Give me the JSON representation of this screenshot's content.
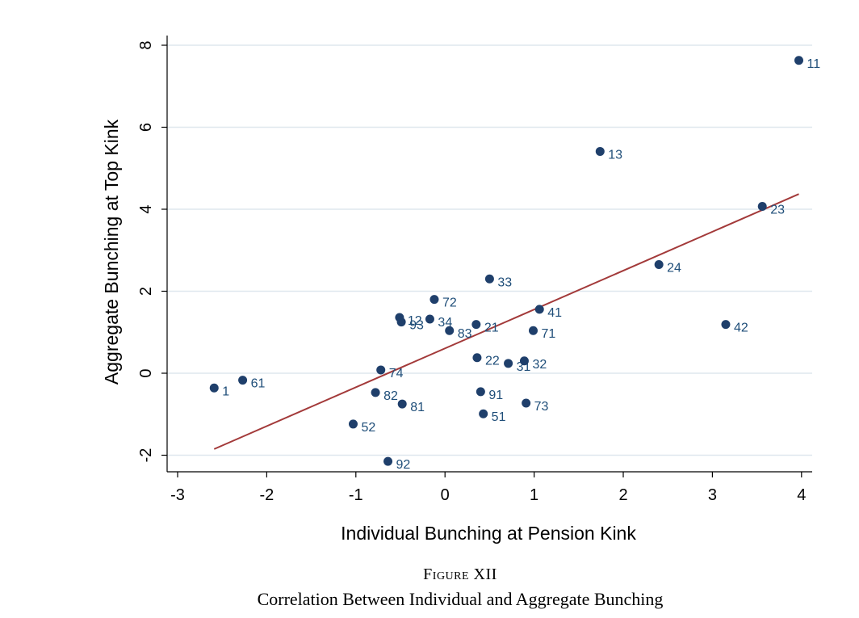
{
  "chart_data": {
    "type": "scatter",
    "xlabel": "Individual Bunching at Pension Kink",
    "ylabel": "Aggregate Bunching at Top Kink",
    "xlim": [
      -3,
      4
    ],
    "ylim": [
      -2,
      8
    ],
    "xticks": [
      -3,
      -2,
      -1,
      0,
      1,
      2,
      3,
      4
    ],
    "yticks": [
      -2,
      0,
      2,
      4,
      6,
      8
    ],
    "grid": "horizontal",
    "colors": {
      "points": "#1f3f6b",
      "labels": "#1f4e79",
      "fit_line": "#a33a3a",
      "grid": "#dfe7ee"
    },
    "points": [
      {
        "label": "11",
        "x": 3.97,
        "y": 7.63
      },
      {
        "label": "13",
        "x": 1.74,
        "y": 5.41
      },
      {
        "label": "23",
        "x": 3.56,
        "y": 4.07
      },
      {
        "label": "24",
        "x": 2.4,
        "y": 2.65
      },
      {
        "label": "33",
        "x": 0.5,
        "y": 2.3
      },
      {
        "label": "72",
        "x": -0.12,
        "y": 1.8
      },
      {
        "label": "41",
        "x": 1.06,
        "y": 1.56
      },
      {
        "label": "12",
        "x": -0.51,
        "y": 1.36
      },
      {
        "label": "34",
        "x": -0.17,
        "y": 1.32
      },
      {
        "label": "93",
        "x": -0.49,
        "y": 1.25
      },
      {
        "label": "21",
        "x": 0.35,
        "y": 1.19
      },
      {
        "label": "83",
        "x": 0.05,
        "y": 1.04
      },
      {
        "label": "71",
        "x": 0.99,
        "y": 1.04
      },
      {
        "label": "42",
        "x": 3.15,
        "y": 1.19
      },
      {
        "label": "22",
        "x": 0.36,
        "y": 0.38
      },
      {
        "label": "31",
        "x": 0.71,
        "y": 0.24
      },
      {
        "label": "32",
        "x": 0.89,
        "y": 0.3
      },
      {
        "label": "74",
        "x": -0.72,
        "y": 0.08
      },
      {
        "label": "61",
        "x": -2.27,
        "y": -0.17
      },
      {
        "label": "1",
        "x": -2.59,
        "y": -0.36
      },
      {
        "label": "82",
        "x": -0.78,
        "y": -0.47
      },
      {
        "label": "91",
        "x": 0.4,
        "y": -0.45
      },
      {
        "label": "81",
        "x": -0.48,
        "y": -0.75
      },
      {
        "label": "73",
        "x": 0.91,
        "y": -0.73
      },
      {
        "label": "51",
        "x": 0.43,
        "y": -0.99
      },
      {
        "label": "52",
        "x": -1.03,
        "y": -1.24
      },
      {
        "label": "92",
        "x": -0.64,
        "y": -2.15
      }
    ],
    "fit_line": {
      "x": [
        -2.59,
        3.97
      ],
      "y": [
        -1.85,
        4.37
      ]
    }
  },
  "caption": {
    "figure_number": "Figure XII",
    "title": "Correlation Between Individual and Aggregate Bunching"
  }
}
